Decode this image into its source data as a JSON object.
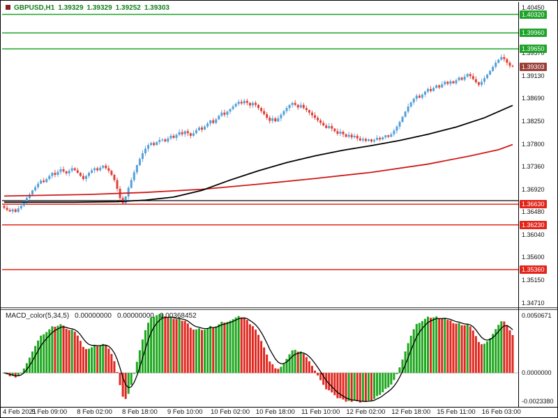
{
  "symbol_label": {
    "name": "GBPUSD,H1",
    "open": "1.39329",
    "high": "1.39329",
    "low": "1.39252",
    "close": "1.39303",
    "color": "#15801f"
  },
  "chart_data": [
    {
      "type": "candlestick",
      "title": "GBPUSD,H1",
      "timeframe": "H1",
      "y_axis": {
        "range": [
          1.3471,
          1.4045
        ],
        "ticks": [
          "1.40450",
          "1.39570",
          "1.39130",
          "1.38690",
          "1.38250",
          "1.37800",
          "1.37360",
          "1.36920",
          "1.36480",
          "1.36040",
          "1.35600",
          "1.35150",
          "1.34710"
        ]
      },
      "x_axis": {
        "labels": [
          "4 Feb 2021",
          "5 Feb 09:00",
          "8 Feb 02:00",
          "8 Feb 18:00",
          "9 Feb 10:00",
          "10 Feb 02:00",
          "10 Feb 18:00",
          "11 Feb 10:00",
          "12 Feb 02:00",
          "12 Feb 18:00",
          "15 Feb 11:00",
          "16 Feb 03:00"
        ],
        "bars_per_label": 16
      },
      "levels": {
        "resistance": [
          1.4032,
          1.3996,
          1.3965
        ],
        "support": [
          1.3663,
          1.3623,
          1.3536
        ],
        "black_line": 1.367,
        "current_price": 1.39303
      },
      "closes": [
        1.3656,
        1.3652,
        1.3649,
        1.3653,
        1.3648,
        1.3655,
        1.366,
        1.3668,
        1.3675,
        1.3682,
        1.369,
        1.3696,
        1.3703,
        1.3709,
        1.3706,
        1.3712,
        1.3718,
        1.3724,
        1.372,
        1.3726,
        1.3731,
        1.3727,
        1.3723,
        1.3728,
        1.3733,
        1.3729,
        1.3724,
        1.3718,
        1.3712,
        1.3718,
        1.3724,
        1.3729,
        1.3733,
        1.3729,
        1.3734,
        1.3738,
        1.3733,
        1.3728,
        1.372,
        1.371,
        1.3693,
        1.3675,
        1.3665,
        1.3678,
        1.3695,
        1.371,
        1.3725,
        1.3739,
        1.3751,
        1.3762,
        1.3771,
        1.3778,
        1.3782,
        1.3778,
        1.3784,
        1.3788,
        1.3789,
        1.3785,
        1.3791,
        1.3796,
        1.3792,
        1.3798,
        1.3803,
        1.3799,
        1.3805,
        1.3801,
        1.3796,
        1.3801,
        1.3807,
        1.3812,
        1.3808,
        1.3814,
        1.382,
        1.3826,
        1.3821,
        1.3828,
        1.3835,
        1.3841,
        1.3837,
        1.3843,
        1.3848,
        1.3853,
        1.3858,
        1.3862,
        1.3859,
        1.3864,
        1.386,
        1.3855,
        1.386,
        1.3856,
        1.385,
        1.3844,
        1.3838,
        1.3831,
        1.3825,
        1.383,
        1.3824,
        1.383,
        1.3837,
        1.3844,
        1.385,
        1.3856,
        1.386,
        1.3856,
        1.3851,
        1.3856,
        1.385,
        1.3846,
        1.3841,
        1.3836,
        1.3831,
        1.3826,
        1.3821,
        1.3816,
        1.3811,
        1.3815,
        1.381,
        1.3805,
        1.38,
        1.3804,
        1.3799,
        1.3794,
        1.3798,
        1.3793,
        1.3796,
        1.3791,
        1.3787,
        1.379,
        1.3786,
        1.3789,
        1.3785,
        1.3788,
        1.3792,
        1.3789,
        1.3793,
        1.3797,
        1.3794,
        1.3799,
        1.3806,
        1.3814,
        1.3823,
        1.3833,
        1.3843,
        1.3853,
        1.3861,
        1.3868,
        1.3874,
        1.387,
        1.3876,
        1.3882,
        1.3887,
        1.3883,
        1.3889,
        1.3894,
        1.389,
        1.3896,
        1.3901,
        1.3897,
        1.3902,
        1.3898,
        1.3904,
        1.3909,
        1.3905,
        1.3911,
        1.3916,
        1.3912,
        1.3906,
        1.39,
        1.3895,
        1.3901,
        1.3908,
        1.3915,
        1.3922,
        1.393,
        1.3938,
        1.3944,
        1.3949,
        1.3945,
        1.3938,
        1.3932,
        1.39303
      ],
      "ma_black": [
        [
          0,
          1.3667
        ],
        [
          25,
          1.3667
        ],
        [
          40,
          1.3668
        ],
        [
          50,
          1.3671
        ],
        [
          60,
          1.3677
        ],
        [
          70,
          1.369
        ],
        [
          80,
          1.371
        ],
        [
          90,
          1.3728
        ],
        [
          100,
          1.3744
        ],
        [
          110,
          1.3757
        ],
        [
          120,
          1.3768
        ],
        [
          130,
          1.3777
        ],
        [
          140,
          1.3787
        ],
        [
          150,
          1.3799
        ],
        [
          160,
          1.3813
        ],
        [
          170,
          1.3831
        ],
        [
          180,
          1.3855
        ]
      ],
      "ma_red": [
        [
          0,
          1.3679
        ],
        [
          30,
          1.3682
        ],
        [
          50,
          1.3686
        ],
        [
          70,
          1.3692
        ],
        [
          90,
          1.3702
        ],
        [
          110,
          1.3713
        ],
        [
          130,
          1.3725
        ],
        [
          150,
          1.3741
        ],
        [
          165,
          1.3757
        ],
        [
          175,
          1.3769
        ],
        [
          180,
          1.3779
        ]
      ],
      "colors": {
        "up": "#55a0d8",
        "down": "#df4038",
        "ma_black": "#000000",
        "ma_red": "#d01818",
        "resistance": "#1fa32a",
        "support": "#e2251a",
        "current_badge": "#9a3e38",
        "axis_text": "#111111"
      }
    },
    {
      "type": "bar",
      "title": "MACD_color(5,34,5)",
      "params": {
        "fast": 5,
        "slow": 34,
        "signal": 5
      },
      "values_display": [
        "0.00000000",
        "0.00000000",
        "0.00368452"
      ],
      "y_axis": {
        "ticks": [
          "0.0050671",
          "0.0000000",
          "-0.0023380"
        ]
      },
      "colors": {
        "up": "#1fa71f",
        "down": "#e02820",
        "signal": "#000000",
        "zero_line": "#b5b5b5"
      }
    }
  ]
}
